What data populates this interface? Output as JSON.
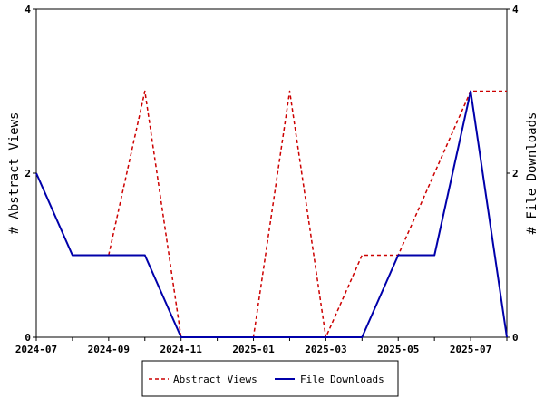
{
  "chart_data": {
    "type": "line",
    "x": [
      "2024-07",
      "2024-08",
      "2024-09",
      "2024-10",
      "2024-11",
      "2024-12",
      "2025-01",
      "2025-02",
      "2025-03",
      "2025-04",
      "2025-05",
      "2025-06",
      "2025-07",
      "2025-08"
    ],
    "x_tick_labels": [
      "2024-07",
      "2024-09",
      "2024-11",
      "2025-01",
      "2025-03",
      "2025-05",
      "2025-07"
    ],
    "xlim": [
      "2024-07",
      "2025-08"
    ],
    "y_left_label": "# Abstract Views",
    "y_right_label": "# File Downloads",
    "ylim_left": [
      0,
      4
    ],
    "ylim_right": [
      0,
      4
    ],
    "y_tick_labels": [
      "0",
      "2",
      "4"
    ],
    "grid": false,
    "legend_position": "bottom-center",
    "series": [
      {
        "name": "Abstract Views",
        "axis": "left",
        "color": "#cc0000",
        "style": "dashed",
        "values": [
          null,
          null,
          1,
          3,
          0,
          null,
          0,
          3,
          0,
          1,
          1,
          2,
          3,
          3
        ]
      },
      {
        "name": "File Downloads",
        "axis": "right",
        "color": "#0000aa",
        "style": "solid",
        "values": [
          2,
          1,
          1,
          1,
          0,
          0,
          0,
          0,
          0,
          0,
          1,
          1,
          3,
          0
        ]
      }
    ]
  }
}
